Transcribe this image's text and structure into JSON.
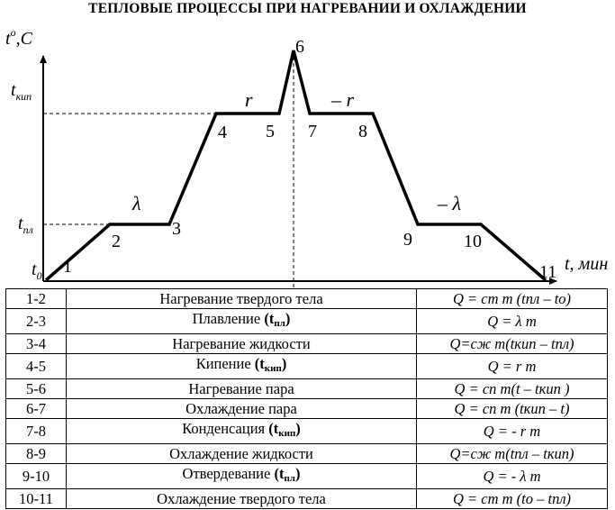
{
  "title": "ТЕПЛОВЫЕ ПРОЦЕССЫ  ПРИ НАГРЕВАНИИ И ОХЛАЖДЕНИИ",
  "axes": {
    "y_label": "t",
    "y_label_sup": "o",
    "y_label_unit": "C",
    "x_label": "t, мин",
    "t0": "t",
    "t0_sub": "0",
    "t_kip": "t",
    "t_kip_sub": "кип",
    "t_pl": "t",
    "t_pl_sub": "пл"
  },
  "points": [
    "1",
    "2",
    "3",
    "4",
    "5",
    "6",
    "7",
    "8",
    "9",
    "10",
    "11"
  ],
  "segment_labels": {
    "lambda": "λ",
    "r": "r",
    "minus_r": "– r",
    "minus_lambda": "– λ"
  },
  "table": [
    {
      "range": "1-2",
      "process": "Нагревание твердого тела",
      "formula": "Q = cт m (tпл – to)"
    },
    {
      "range": "2-3",
      "process": "Плавление",
      "bold": "t",
      "bold_sub": "пл",
      "formula": "Q = λ m"
    },
    {
      "range": "3-4",
      "process": "Нагревание жидкости",
      "formula": "Q=cж m(tкип – tпл)"
    },
    {
      "range": "4-5",
      "process": "Кипение",
      "bold": "t",
      "bold_sub": "кип",
      "formula": "Q = r m"
    },
    {
      "range": "5-6",
      "process": "Нагревание пара",
      "formula": "Q = cп m(t – tкип )"
    },
    {
      "range": "6-7",
      "process": "Охлаждение пара",
      "formula": "Q = cп m (tкип – t)"
    },
    {
      "range": "7-8",
      "process": "Конденсация",
      "bold": "t",
      "bold_sub": "кип",
      "formula": "Q = - r m"
    },
    {
      "range": "8-9",
      "process": "Охлаждение жидкости",
      "formula": "Q=cж m(tпл – tкип)"
    },
    {
      "range": "9-10",
      "process": "Отвердевание",
      "bold": "t",
      "bold_sub": "пл",
      "formula": "Q = - λ m"
    },
    {
      "range": "10-11",
      "process": "Охлаждение твердого тела",
      "formula": "Q = cт m (to – tпл)"
    }
  ]
}
